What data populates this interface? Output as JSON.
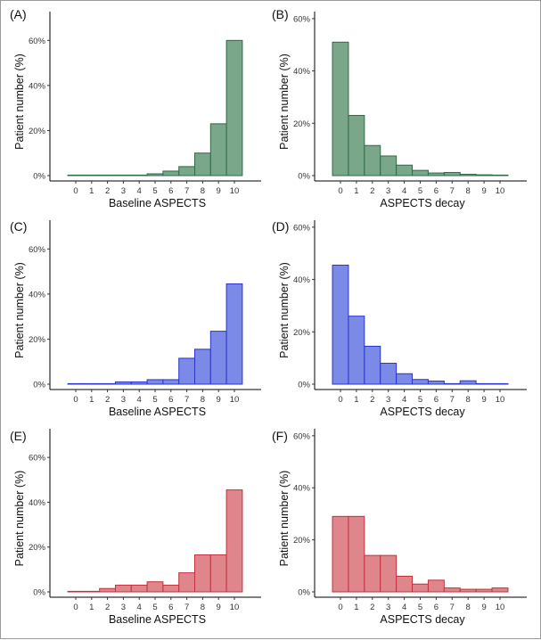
{
  "colors": {
    "green": {
      "fill": "#7aa68a",
      "stroke": "#2f6b45"
    },
    "blue": {
      "fill": "#7b8ae6",
      "stroke": "#2a35c4"
    },
    "red": {
      "fill": "#df868c",
      "stroke": "#c0313d"
    }
  },
  "chart_data": [
    {
      "panel": "(A)",
      "type": "bar",
      "color": "green",
      "categories": [
        "0",
        "1",
        "2",
        "3",
        "4",
        "5",
        "6",
        "7",
        "8",
        "9",
        "10"
      ],
      "values": [
        0.1,
        0.1,
        0.1,
        0.1,
        0.2,
        0.8,
        2.0,
        4.0,
        10.0,
        23.0,
        60.0
      ],
      "xlabel": "Baseline ASPECTS",
      "ylabel": "Patient number (%)",
      "ylim": [
        0,
        72
      ],
      "yticks": [
        0,
        20,
        40,
        60
      ],
      "ytick_labels": [
        "0%",
        "20%",
        "40%",
        "60%"
      ]
    },
    {
      "panel": "(B)",
      "type": "bar",
      "color": "green",
      "categories": [
        "0",
        "1",
        "2",
        "3",
        "4",
        "5",
        "6",
        "7",
        "8",
        "9",
        "10"
      ],
      "values": [
        51.0,
        23.0,
        11.5,
        7.5,
        4.0,
        2.0,
        1.0,
        1.2,
        0.5,
        0.3,
        0.1
      ],
      "xlabel": "ASPECTS decay",
      "ylabel": "Patient number (%)",
      "ylim": [
        0,
        62
      ],
      "yticks": [
        0,
        20,
        40,
        60
      ],
      "ytick_labels": [
        "0%",
        "20%",
        "40%",
        "60%"
      ]
    },
    {
      "panel": "(C)",
      "type": "bar",
      "color": "blue",
      "categories": [
        "0",
        "1",
        "2",
        "3",
        "4",
        "5",
        "6",
        "7",
        "8",
        "9",
        "10"
      ],
      "values": [
        0.1,
        0.1,
        0.1,
        1.0,
        1.0,
        2.0,
        2.0,
        11.5,
        15.5,
        23.5,
        44.5
      ],
      "xlabel": "Baseline ASPECTS",
      "ylabel": "Patient number (%)",
      "ylim": [
        0,
        72
      ],
      "yticks": [
        0,
        20,
        40,
        60
      ],
      "ytick_labels": [
        "0%",
        "20%",
        "40%",
        "60%"
      ]
    },
    {
      "panel": "(D)",
      "type": "bar",
      "color": "blue",
      "categories": [
        "0",
        "1",
        "2",
        "3",
        "4",
        "5",
        "6",
        "7",
        "8",
        "9",
        "10"
      ],
      "values": [
        45.5,
        26.0,
        14.5,
        8.0,
        4.0,
        1.8,
        1.2,
        0.2,
        1.3,
        0.1,
        0.1
      ],
      "xlabel": "ASPECTS decay",
      "ylabel": "Patient number (%)",
      "ylim": [
        0,
        62
      ],
      "yticks": [
        0,
        20,
        40,
        60
      ],
      "ytick_labels": [
        "0%",
        "20%",
        "40%",
        "60%"
      ]
    },
    {
      "panel": "(E)",
      "type": "bar",
      "color": "red",
      "categories": [
        "0",
        "1",
        "2",
        "3",
        "4",
        "5",
        "6",
        "7",
        "8",
        "9",
        "10"
      ],
      "values": [
        0.2,
        0.2,
        1.5,
        3.0,
        3.0,
        4.5,
        3.0,
        8.5,
        16.5,
        16.5,
        45.5
      ],
      "xlabel": "Baseline ASPECTS",
      "ylabel": "Patient number (%)",
      "ylim": [
        0,
        72
      ],
      "yticks": [
        0,
        20,
        40,
        60
      ],
      "ytick_labels": [
        "0%",
        "20%",
        "40%",
        "60%"
      ]
    },
    {
      "panel": "(F)",
      "type": "bar",
      "color": "red",
      "categories": [
        "0",
        "1",
        "2",
        "3",
        "4",
        "5",
        "6",
        "7",
        "8",
        "9",
        "10"
      ],
      "values": [
        29.0,
        29.0,
        14.0,
        14.0,
        6.0,
        3.0,
        4.5,
        1.5,
        1.0,
        1.0,
        1.5
      ],
      "xlabel": "ASPECTS decay",
      "ylabel": "Patient number (%)",
      "ylim": [
        0,
        62
      ],
      "yticks": [
        0,
        20,
        40,
        60
      ],
      "ytick_labels": [
        "0%",
        "20%",
        "40%",
        "60%"
      ]
    }
  ]
}
